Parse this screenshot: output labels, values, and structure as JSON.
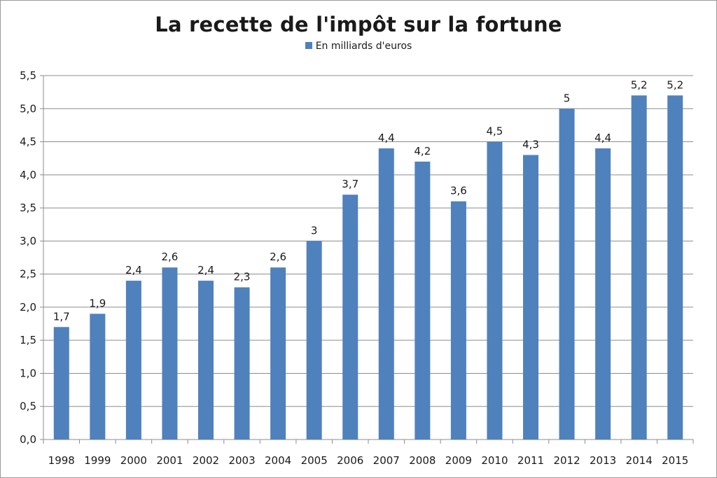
{
  "chart_data": {
    "type": "bar",
    "title": "La recette de l'impôt sur la fortune",
    "xlabel": "",
    "ylabel": "",
    "ylim": [
      0,
      5.5
    ],
    "yticks": [
      {
        "value": 0,
        "label": "0,0"
      },
      {
        "value": 0.5,
        "label": "0,5"
      },
      {
        "value": 1,
        "label": "1,0"
      },
      {
        "value": 1.5,
        "label": "1,5"
      },
      {
        "value": 2,
        "label": "2,0"
      },
      {
        "value": 2.5,
        "label": "2,5"
      },
      {
        "value": 3,
        "label": "3,0"
      },
      {
        "value": 3.5,
        "label": "3,5"
      },
      {
        "value": 4,
        "label": "4,0"
      },
      {
        "value": 4.5,
        "label": "4,5"
      },
      {
        "value": 5,
        "label": "5,0"
      },
      {
        "value": 5.5,
        "label": "5,5"
      }
    ],
    "grid": true,
    "legend_position": "top",
    "categories": [
      "1998",
      "1999",
      "2000",
      "2001",
      "2002",
      "2003",
      "2004",
      "2005",
      "2006",
      "2007",
      "2008",
      "2009",
      "2010",
      "2011",
      "2012",
      "2013",
      "2014",
      "2015"
    ],
    "series": [
      {
        "name": "En milliards d'euros",
        "color": "#4f81bd",
        "values": [
          1.7,
          1.9,
          2.4,
          2.6,
          2.4,
          2.3,
          2.6,
          3,
          3.7,
          4.4,
          4.2,
          3.6,
          4.5,
          4.3,
          5,
          4.4,
          5.2,
          5.2
        ],
        "data_labels": [
          "1,7",
          "1,9",
          "2,4",
          "2,6",
          "2,4",
          "2,3",
          "2,6",
          "3",
          "3,7",
          "4,4",
          "4,2",
          "3,6",
          "4,5",
          "4,3",
          "5",
          "4,4",
          "5,2",
          "5,2"
        ]
      }
    ]
  }
}
